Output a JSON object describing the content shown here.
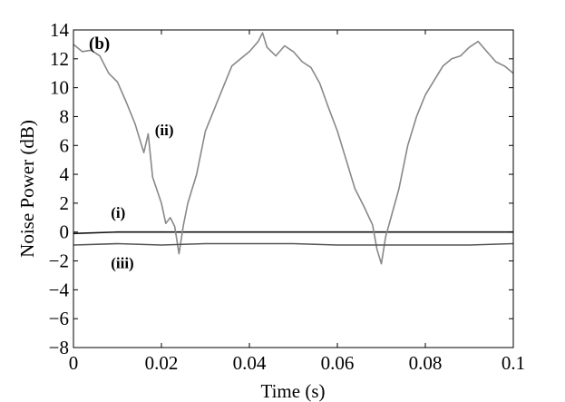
{
  "chart_data": {
    "type": "line",
    "panel_label": "(b)",
    "xlabel": "Time (s)",
    "ylabel": "Noise Power (dB)",
    "xlim": [
      0,
      0.1
    ],
    "ylim": [
      -8,
      14
    ],
    "x_ticks": [
      0,
      0.02,
      0.04,
      0.06,
      0.08,
      0.1
    ],
    "x_tick_labels": [
      "0",
      "0.02",
      "0.04",
      "0.06",
      "0.08",
      "0.1"
    ],
    "y_ticks": [
      -8,
      -6,
      -4,
      -2,
      0,
      2,
      4,
      6,
      8,
      10,
      12,
      14
    ],
    "y_tick_labels": [
      "−8",
      "−6",
      "−4",
      "−2",
      "0",
      "2",
      "4",
      "6",
      "8",
      "10",
      "12",
      "14"
    ],
    "grid": false,
    "series": [
      {
        "name": "(i)",
        "color": "#111111",
        "x": [
          0,
          0.01,
          0.02,
          0.03,
          0.04,
          0.05,
          0.06,
          0.07,
          0.08,
          0.09,
          0.1
        ],
        "values": [
          -0.1,
          0.0,
          0.0,
          0.0,
          0.0,
          0.0,
          0.0,
          0.0,
          0.0,
          0.0,
          0.0
        ]
      },
      {
        "name": "(ii)",
        "color": "#888888",
        "x": [
          0,
          0.002,
          0.004,
          0.006,
          0.008,
          0.01,
          0.012,
          0.014,
          0.016,
          0.017,
          0.018,
          0.02,
          0.021,
          0.022,
          0.023,
          0.024,
          0.025,
          0.026,
          0.028,
          0.03,
          0.032,
          0.034,
          0.036,
          0.038,
          0.04,
          0.042,
          0.043,
          0.044,
          0.046,
          0.048,
          0.05,
          0.052,
          0.054,
          0.056,
          0.058,
          0.06,
          0.062,
          0.064,
          0.066,
          0.068,
          0.069,
          0.07,
          0.071,
          0.072,
          0.074,
          0.076,
          0.078,
          0.08,
          0.082,
          0.084,
          0.086,
          0.088,
          0.09,
          0.092,
          0.094,
          0.096,
          0.098,
          0.1
        ],
        "values": [
          13.0,
          12.5,
          12.6,
          12.2,
          11.0,
          10.4,
          9.0,
          7.5,
          5.5,
          6.8,
          3.8,
          2.0,
          0.6,
          1.0,
          0.4,
          -1.5,
          0.5,
          2.0,
          4.0,
          7.0,
          8.5,
          10.0,
          11.5,
          12.0,
          12.5,
          13.2,
          13.8,
          12.8,
          12.2,
          12.9,
          12.5,
          11.8,
          11.4,
          10.3,
          8.6,
          7.0,
          5.0,
          3.0,
          1.8,
          0.5,
          -1.2,
          -2.2,
          -0.3,
          0.8,
          3.0,
          6.0,
          8.0,
          9.5,
          10.5,
          11.5,
          12.0,
          12.2,
          12.8,
          13.2,
          12.5,
          11.8,
          11.5,
          11.0
        ]
      },
      {
        "name": "(iii)",
        "color": "#555555",
        "x": [
          0,
          0.01,
          0.02,
          0.03,
          0.04,
          0.05,
          0.06,
          0.07,
          0.08,
          0.09,
          0.1
        ],
        "values": [
          -0.9,
          -0.8,
          -0.9,
          -0.8,
          -0.8,
          -0.8,
          -0.9,
          -0.9,
          -0.9,
          -0.9,
          -0.8
        ]
      }
    ],
    "annotations": [
      {
        "text": "(i)",
        "x": 0.0085,
        "y": 1.0
      },
      {
        "text": "(ii)",
        "x": 0.0185,
        "y": 6.7
      },
      {
        "text": "(iii)",
        "x": 0.0085,
        "y": -2.5
      }
    ]
  }
}
